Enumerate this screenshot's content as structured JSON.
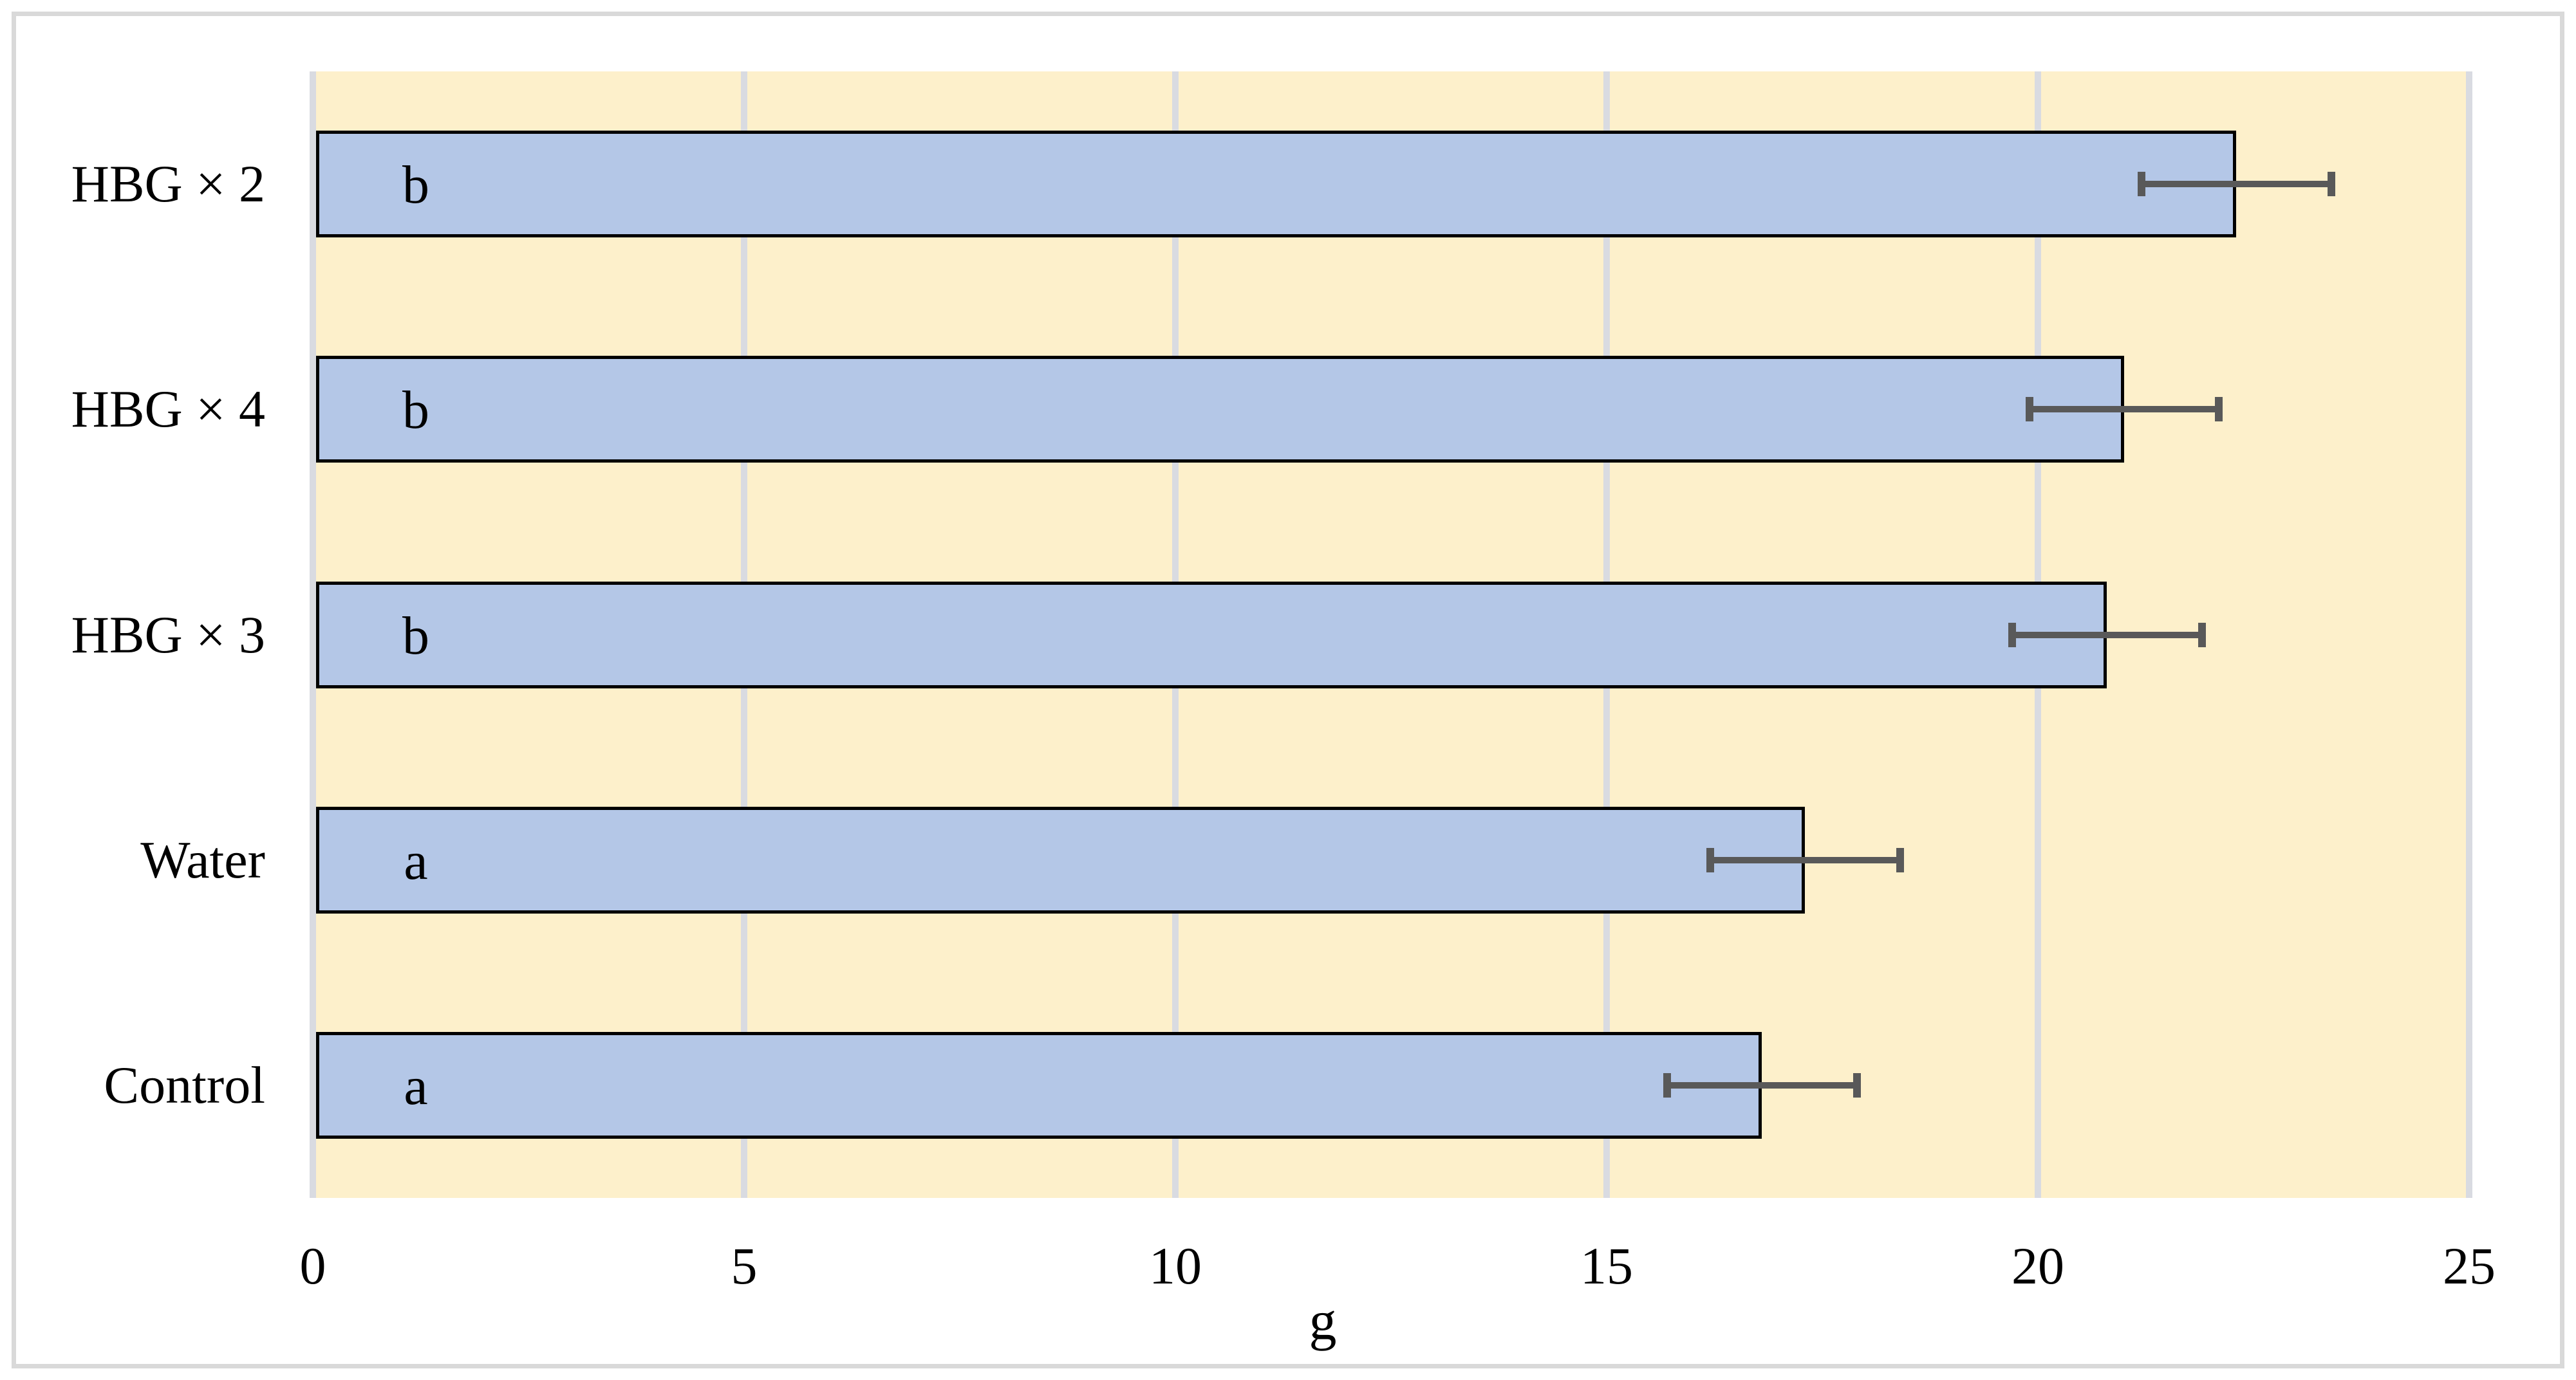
{
  "chart_data": {
    "type": "bar",
    "orientation": "horizontal",
    "xlabel": "g",
    "xlim": [
      0,
      25
    ],
    "xticks": [
      0,
      5,
      10,
      15,
      20,
      25
    ],
    "grid": true,
    "legend": false,
    "categories": [
      "HBG × 2",
      "HBG × 4",
      "HBG × 3",
      "Water",
      "Control"
    ],
    "series": [
      {
        "values": [
          22.3,
          21.0,
          20.8,
          17.3,
          16.8
        ],
        "error_bars": [
          1.1,
          1.1,
          1.1,
          1.1,
          1.1
        ],
        "bar_labels": [
          "b",
          "b",
          "b",
          "a",
          "a"
        ]
      }
    ]
  },
  "colors": {
    "page_background": "#FFFFFF",
    "chart_frame_border": "#D9D9D9",
    "plot_background": "#FDF0CB",
    "bar_fill": "#B4C7E7",
    "bar_border": "#000000",
    "error_bar": "#595959",
    "gridline": "#D9DBE1",
    "text": "#000000"
  }
}
